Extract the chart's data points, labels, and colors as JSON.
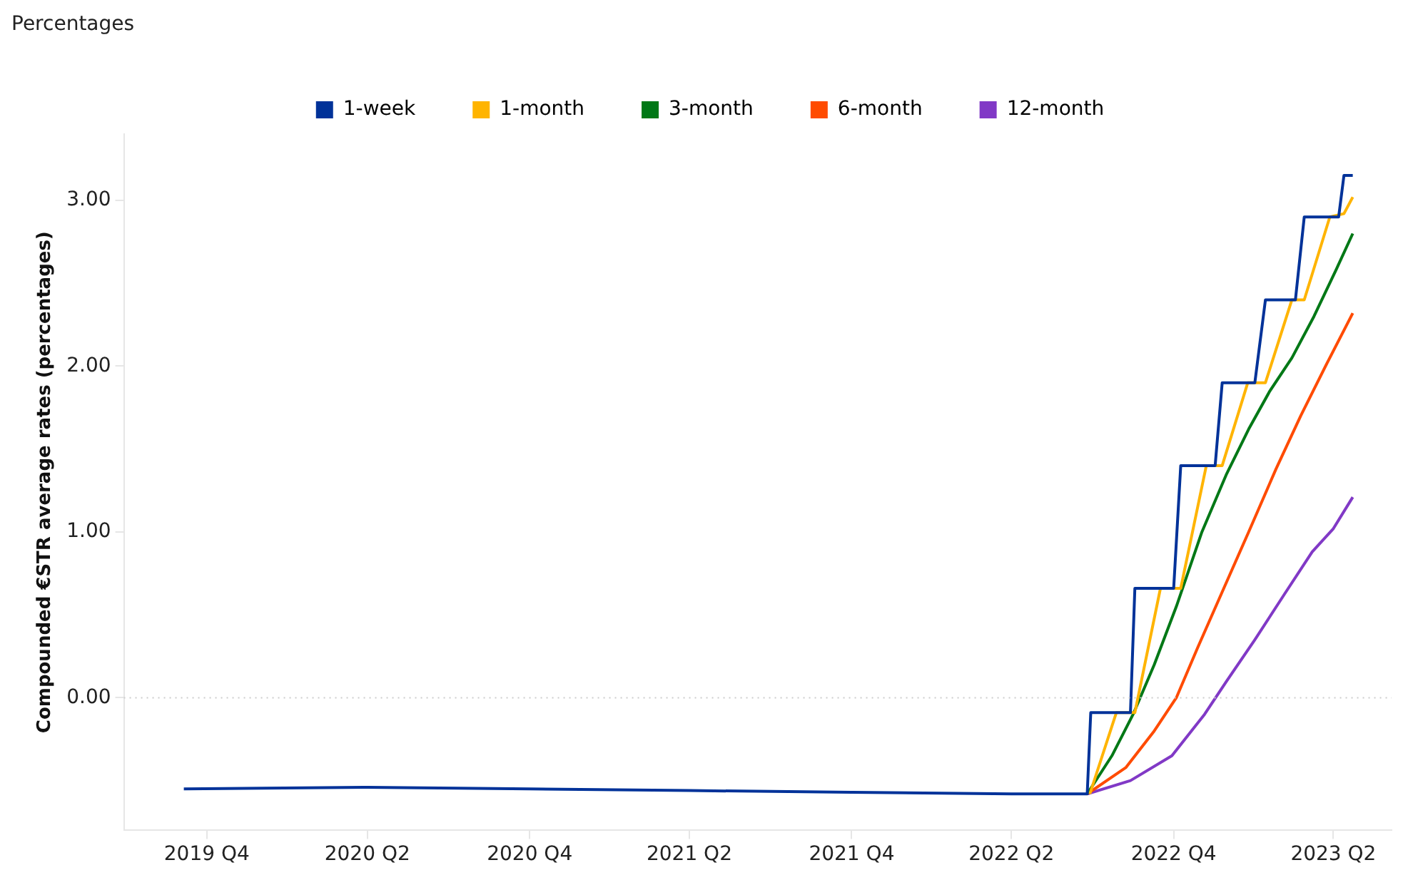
{
  "chart_data": {
    "type": "line",
    "title": "Percentages",
    "ylabel": "Compounded €STR average rates (percentages)",
    "xlim": [
      "2019-08-13",
      "2023-07-20"
    ],
    "xticks": [
      {
        "value": "2019-11-15",
        "label": "2019 Q4"
      },
      {
        "value": "2020-05-15",
        "label": "2020 Q2"
      },
      {
        "value": "2020-11-15",
        "label": "2020 Q4"
      },
      {
        "value": "2021-05-15",
        "label": "2021 Q2"
      },
      {
        "value": "2021-11-15",
        "label": "2021 Q4"
      },
      {
        "value": "2022-05-15",
        "label": "2022 Q2"
      },
      {
        "value": "2022-11-15",
        "label": "2022 Q4"
      },
      {
        "value": "2023-05-15",
        "label": "2023 Q2"
      }
    ],
    "ylim": [
      -0.8,
      3.4
    ],
    "yticks": [
      {
        "value": 0,
        "label": "0.00"
      },
      {
        "value": 1,
        "label": "1.00"
      },
      {
        "value": 2,
        "label": "2.00"
      },
      {
        "value": 3,
        "label": "3.00"
      }
    ],
    "grid": false,
    "legend": "top",
    "marker": "none",
    "line_style": "solid",
    "ref_lines": [
      {
        "axis": "y",
        "value": 0,
        "color": "#cccccc",
        "line_style": "dotted"
      }
    ],
    "series": [
      {
        "name": "12-month",
        "color": "#8139c6",
        "x": [
          "2022-08-09",
          "2022-09-27",
          "2022-11-13",
          "2022-12-20",
          "2023-01-14",
          "2023-02-15",
          "2023-03-20",
          "2023-04-21",
          "2023-05-15",
          "2023-06-06"
        ],
        "values": [
          -0.58,
          -0.5,
          -0.35,
          -0.1,
          0.1,
          0.35,
          0.62,
          0.88,
          1.02,
          1.21
        ]
      },
      {
        "name": "6-month",
        "color": "#ff4b00",
        "x": [
          "2022-08-09",
          "2022-09-22",
          "2022-10-24",
          "2022-11-18",
          "2022-12-12",
          "2023-01-10",
          "2023-02-08",
          "2023-03-11",
          "2023-04-08",
          "2023-05-08",
          "2023-06-06"
        ],
        "values": [
          -0.58,
          -0.42,
          -0.2,
          0.0,
          0.3,
          0.65,
          1.0,
          1.38,
          1.7,
          2.02,
          2.32
        ]
      },
      {
        "name": "3-month",
        "color": "#007816",
        "x": [
          "2022-08-09",
          "2022-09-06",
          "2022-09-30",
          "2022-10-24",
          "2022-11-18",
          "2022-12-17",
          "2023-01-14",
          "2023-02-08",
          "2023-03-04",
          "2023-03-29",
          "2023-04-23",
          "2023-05-18",
          "2023-06-06"
        ],
        "values": [
          -0.58,
          -0.35,
          -0.1,
          0.2,
          0.55,
          1.0,
          1.35,
          1.62,
          1.85,
          2.05,
          2.3,
          2.58,
          2.8
        ]
      },
      {
        "name": "1-month",
        "color": "#ffb400",
        "x": [
          "2022-08-12",
          "2022-09-11",
          "2022-10-02",
          "2022-10-31",
          "2022-11-23",
          "2022-12-22",
          "2023-01-09",
          "2023-02-07",
          "2023-02-27",
          "2023-03-29",
          "2023-04-12",
          "2023-05-11",
          "2023-05-27",
          "2023-06-06"
        ],
        "values": [
          -0.58,
          -0.09,
          -0.09,
          0.66,
          0.66,
          1.4,
          1.4,
          1.9,
          1.9,
          2.4,
          2.4,
          2.9,
          2.92,
          3.02
        ]
      },
      {
        "name": "1-week",
        "color": "#003299",
        "x": [
          "2019-10-20",
          "2020-05-15",
          "2020-11-15",
          "2021-05-15",
          "2021-11-15",
          "2022-05-15",
          "2022-08-09",
          "2022-08-13",
          "2022-09-27",
          "2022-10-02",
          "2022-11-15",
          "2022-11-23",
          "2023-01-01",
          "2023-01-09",
          "2023-02-15",
          "2023-02-27",
          "2023-04-02",
          "2023-04-12",
          "2023-05-21",
          "2023-05-27",
          "2023-06-06"
        ],
        "values": [
          -0.55,
          -0.54,
          -0.55,
          -0.56,
          -0.57,
          -0.58,
          -0.58,
          -0.09,
          -0.09,
          0.66,
          0.66,
          1.4,
          1.4,
          1.9,
          1.9,
          2.4,
          2.4,
          2.9,
          2.9,
          3.15,
          3.15
        ]
      }
    ]
  }
}
